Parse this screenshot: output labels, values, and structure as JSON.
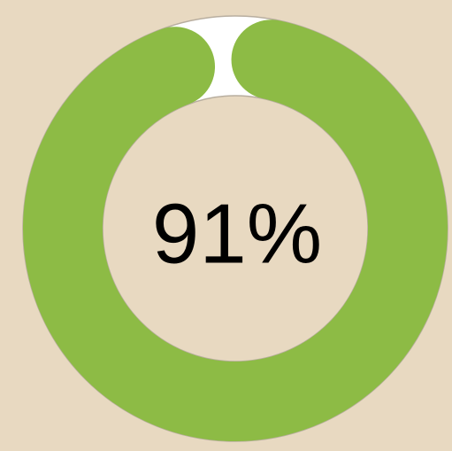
{
  "chart_data": {
    "type": "donut",
    "values": [
      91
    ],
    "value_labels": [
      "91%"
    ],
    "color": "#8dbb45"
  }
}
